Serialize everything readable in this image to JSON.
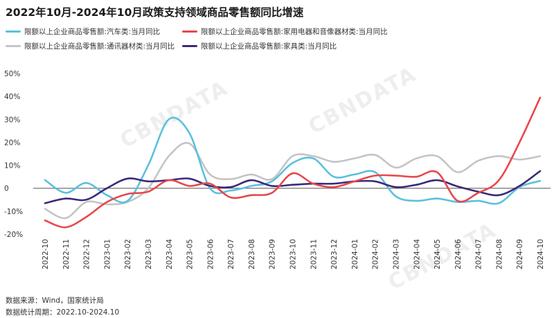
{
  "chart_data": {
    "type": "line",
    "title": "2022年10月-2024年10月政策支持领域商品零售额同比增速",
    "categories": [
      "2022-10",
      "2022-11",
      "2022-12",
      "2023-01",
      "2023-02",
      "2023-03",
      "2023-04",
      "2023-05",
      "2023-06",
      "2023-07",
      "2023-08",
      "2023-09",
      "2023-10",
      "2023-11",
      "2023-12",
      "2024-01",
      "2024-02",
      "2024-03",
      "2024-04",
      "2024-05",
      "2024-06",
      "2024-07",
      "2024-08",
      "2024-09",
      "2024-10"
    ],
    "series": [
      {
        "name": "限额以上企业商品零售额:汽车类:当月同比",
        "color": "#5bc0de",
        "values": [
          3.6,
          -2.0,
          2.3,
          -3.0,
          -5.5,
          10.0,
          30.0,
          24.0,
          0,
          -1.0,
          1.0,
          3.0,
          11.0,
          13.0,
          5.0,
          6.0,
          7.0,
          -3.5,
          -5.5,
          -4.5,
          -6.0,
          -5.5,
          -6.5,
          0.5,
          3.2
        ]
      },
      {
        "name": "限额以上企业商品零售额:家用电器和音像器材类:当月同比",
        "color": "#e8474c",
        "values": [
          -14.0,
          -17.0,
          -12.5,
          -6.0,
          -2.5,
          -1.5,
          3.5,
          1.0,
          2.0,
          -4.0,
          -3.0,
          -2.0,
          6.5,
          2.0,
          0.5,
          3.0,
          5.5,
          5.5,
          5.0,
          7.0,
          -5.5,
          -2.0,
          3.5,
          20.0,
          39.5
        ]
      },
      {
        "name": "限额以上企业商品零售额:通讯器材类:当月同比",
        "color": "#c4c4c4",
        "values": [
          -9.0,
          -13.0,
          -6.0,
          -7.0,
          -6.0,
          0.0,
          14.0,
          19.5,
          6.0,
          4.0,
          6.0,
          4.0,
          14.0,
          14.0,
          11.5,
          13.0,
          14.5,
          9.0,
          13.0,
          14.0,
          7.0,
          12.0,
          14.0,
          12.5,
          14.0
        ]
      },
      {
        "name": "限额以上企业商品零售额:家具类:当月同比",
        "color": "#3a2a7a",
        "values": [
          -6.5,
          -4.5,
          -5.0,
          0.0,
          4.2,
          3.0,
          3.5,
          4.2,
          1.0,
          0.5,
          3.5,
          1.0,
          1.5,
          2.0,
          2.0,
          3.0,
          3.0,
          0.5,
          1.5,
          3.5,
          0.8,
          -1.5,
          -3.0,
          1.0,
          7.5
        ]
      }
    ],
    "y_ticks": [
      "50%",
      "40%",
      "30%",
      "20%",
      "10%",
      "0",
      "-10%",
      "-20%"
    ],
    "y_tick_values": [
      50,
      40,
      30,
      20,
      10,
      0,
      -10,
      -20
    ],
    "ylim": [
      -20,
      50
    ],
    "xlabel": "",
    "ylabel": "",
    "grid": false,
    "legend_position": "top",
    "source": "数据来源：Wind，国家统计局",
    "period": "数据统计周期：2022.10-2024.10"
  },
  "watermark_text": "CBNDATA"
}
